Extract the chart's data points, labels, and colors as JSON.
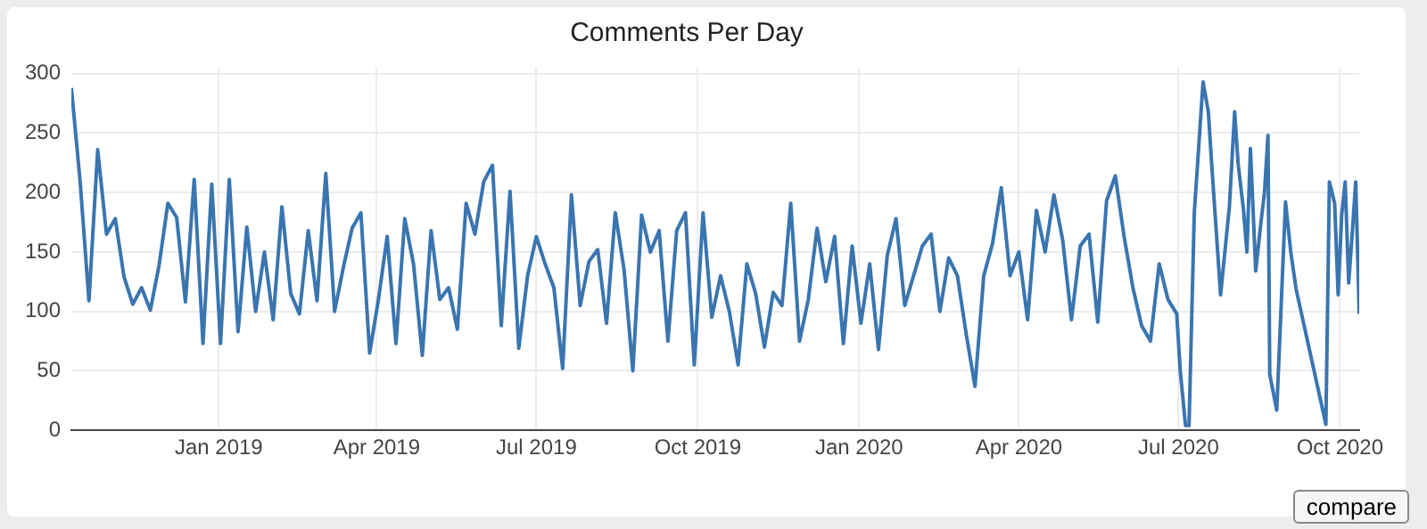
{
  "chart_data": {
    "type": "line",
    "title": "Comments Per Day",
    "x": [
      "2018-10-09",
      "2018-10-14",
      "2018-10-19",
      "2018-10-24",
      "2018-10-29",
      "2018-11-03",
      "2018-11-08",
      "2018-11-13",
      "2018-11-18",
      "2018-11-23",
      "2018-11-28",
      "2018-12-03",
      "2018-12-08",
      "2018-12-13",
      "2018-12-18",
      "2018-12-23",
      "2018-12-28",
      "2019-01-02",
      "2019-01-07",
      "2019-01-12",
      "2019-01-17",
      "2019-01-22",
      "2019-01-27",
      "2019-02-01",
      "2019-02-06",
      "2019-02-11",
      "2019-02-16",
      "2019-02-21",
      "2019-02-26",
      "2019-03-03",
      "2019-03-08",
      "2019-03-13",
      "2019-03-18",
      "2019-03-23",
      "2019-03-28",
      "2019-04-02",
      "2019-04-07",
      "2019-04-12",
      "2019-04-17",
      "2019-04-22",
      "2019-04-27",
      "2019-05-02",
      "2019-05-07",
      "2019-05-12",
      "2019-05-17",
      "2019-05-22",
      "2019-05-27",
      "2019-06-01",
      "2019-06-06",
      "2019-06-11",
      "2019-06-16",
      "2019-06-21",
      "2019-06-26",
      "2019-07-01",
      "2019-07-06",
      "2019-07-11",
      "2019-07-16",
      "2019-07-21",
      "2019-07-26",
      "2019-07-31",
      "2019-08-05",
      "2019-08-10",
      "2019-08-15",
      "2019-08-20",
      "2019-08-25",
      "2019-08-30",
      "2019-09-04",
      "2019-09-09",
      "2019-09-14",
      "2019-09-19",
      "2019-09-24",
      "2019-09-29",
      "2019-10-04",
      "2019-10-09",
      "2019-10-14",
      "2019-10-19",
      "2019-10-24",
      "2019-10-29",
      "2019-11-03",
      "2019-11-08",
      "2019-11-13",
      "2019-11-18",
      "2019-11-23",
      "2019-11-28",
      "2019-12-03",
      "2019-12-08",
      "2019-12-13",
      "2019-12-18",
      "2019-12-23",
      "2019-12-28",
      "2020-01-02",
      "2020-01-07",
      "2020-01-12",
      "2020-01-17",
      "2020-01-22",
      "2020-01-27",
      "2020-02-01",
      "2020-02-06",
      "2020-02-11",
      "2020-02-16",
      "2020-02-21",
      "2020-02-26",
      "2020-03-02",
      "2020-03-07",
      "2020-03-12",
      "2020-03-17",
      "2020-03-22",
      "2020-03-27",
      "2020-04-01",
      "2020-04-06",
      "2020-04-11",
      "2020-04-16",
      "2020-04-21",
      "2020-04-26",
      "2020-05-01",
      "2020-05-06",
      "2020-05-11",
      "2020-05-16",
      "2020-05-21",
      "2020-05-26",
      "2020-05-31",
      "2020-06-05",
      "2020-06-10",
      "2020-06-15",
      "2020-06-20",
      "2020-06-25",
      "2020-06-30",
      "2020-07-02",
      "2020-07-05",
      "2020-07-07",
      "2020-07-10",
      "2020-07-15",
      "2020-07-18",
      "2020-07-20",
      "2020-07-25",
      "2020-07-30",
      "2020-08-02",
      "2020-08-04",
      "2020-08-07",
      "2020-08-09",
      "2020-08-11",
      "2020-08-14",
      "2020-08-17",
      "2020-08-19",
      "2020-08-21",
      "2020-08-22",
      "2020-08-26",
      "2020-08-31",
      "2020-09-03",
      "2020-09-06",
      "2020-09-23",
      "2020-09-25",
      "2020-09-28",
      "2020-09-30",
      "2020-10-02",
      "2020-10-04",
      "2020-10-06",
      "2020-10-08",
      "2020-10-10",
      "2020-10-12"
    ],
    "series": [
      {
        "color": "#3a75b0",
        "values": [
          288,
          209,
          109,
          236,
          165,
          178,
          129,
          106,
          120,
          101,
          139,
          191,
          179,
          108,
          211,
          73,
          207,
          73,
          211,
          83,
          171,
          100,
          150,
          93,
          188,
          115,
          98,
          168,
          109,
          216,
          100,
          137,
          170,
          183,
          65,
          110,
          163,
          73,
          178,
          140,
          63,
          168,
          110,
          120,
          85,
          191,
          165,
          209,
          223,
          88,
          201,
          69,
          130,
          163,
          140,
          120,
          52,
          198,
          105,
          142,
          152,
          90,
          183,
          135,
          50,
          181,
          150,
          168,
          75,
          168,
          183,
          55,
          183,
          95,
          130,
          100,
          55,
          140,
          115,
          70,
          116,
          105,
          191,
          75,
          110,
          170,
          125,
          163,
          73,
          155,
          90,
          140,
          68,
          147,
          178,
          105,
          130,
          155,
          165,
          100,
          145,
          130,
          81,
          37,
          130,
          157,
          204,
          130,
          150,
          93,
          185,
          150,
          198,
          160,
          93,
          155,
          165,
          91,
          193,
          214,
          163,
          120,
          88,
          75,
          140,
          110,
          98,
          50,
          4,
          4,
          183,
          293,
          268,
          222,
          114,
          188,
          268,
          224,
          186,
          150,
          237,
          134,
          175,
          200,
          248,
          47,
          17,
          192,
          150,
          119,
          5,
          209,
          191,
          114,
          181,
          209,
          124,
          165,
          209,
          98
        ]
      }
    ],
    "xlim": [
      "2018-10-09",
      "2020-10-12"
    ],
    "xticks": [
      {
        "value": "2019-01-01",
        "label": "Jan 2019"
      },
      {
        "value": "2019-04-01",
        "label": "Apr 2019"
      },
      {
        "value": "2019-07-01",
        "label": "Jul 2019"
      },
      {
        "value": "2019-10-01",
        "label": "Oct 2019"
      },
      {
        "value": "2020-01-01",
        "label": "Jan 2020"
      },
      {
        "value": "2020-04-01",
        "label": "Apr 2020"
      },
      {
        "value": "2020-07-01",
        "label": "Jul 2020"
      },
      {
        "value": "2020-10-01",
        "label": "Oct 2020"
      }
    ],
    "ylim": [
      0,
      305
    ],
    "yticks": [
      0,
      50,
      100,
      150,
      200,
      250,
      300
    ],
    "grid": true,
    "marker": "none",
    "line_style": "solid",
    "legend": false,
    "annotations": [
      "compare"
    ]
  }
}
